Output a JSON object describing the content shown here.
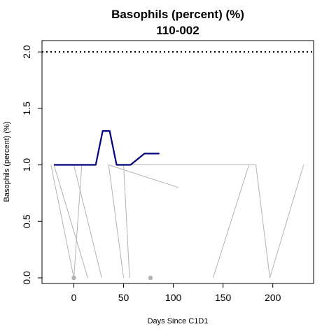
{
  "chart_data": {
    "type": "line",
    "title": "Basophils (percent) (%)",
    "subtitle": "110-002",
    "xlabel": "Days Since C1D1",
    "ylabel": "Basophils (percent) (%)",
    "xlim": [
      -32,
      241
    ],
    "ylim": [
      -0.05,
      2.1
    ],
    "x_ticks": [
      0,
      50,
      100,
      150,
      200
    ],
    "y_ticks": [
      0.0,
      0.5,
      1.0,
      1.5,
      2.0
    ],
    "x_tick_labels": [
      "0",
      "50",
      "100",
      "150",
      "200"
    ],
    "y_tick_labels": [
      "0.0",
      "0.5",
      "1.0",
      "1.5",
      "2.0"
    ],
    "reference_line": {
      "y": 2.0,
      "style": "dotted",
      "color": "#000000"
    },
    "colors": {
      "highlight": "#000080",
      "background": "#b3b3b3"
    },
    "background_lines": [
      [
        [
          -23,
          1.0
        ],
        [
          0,
          0.0
        ]
      ],
      [
        [
          -20,
          1.0
        ],
        [
          14,
          0.0
        ]
      ],
      [
        [
          0,
          1.0
        ],
        [
          28,
          0.0
        ]
      ],
      [
        [
          0,
          0.0
        ],
        [
          8,
          1.0
        ]
      ],
      [
        [
          35,
          1.0
        ],
        [
          50,
          0.0
        ]
      ],
      [
        [
          50,
          1.0
        ],
        [
          56,
          0.0
        ]
      ],
      [
        [
          35,
          1.0
        ],
        [
          105,
          0.8
        ]
      ],
      [
        [
          56,
          1.0
        ],
        [
          183,
          1.0
        ]
      ],
      [
        [
          140,
          0.0
        ],
        [
          176,
          1.0
        ]
      ],
      [
        [
          183,
          1.0
        ],
        [
          197,
          0.0
        ]
      ],
      [
        [
          197,
          0.0
        ],
        [
          231,
          1.0
        ]
      ]
    ],
    "highlight_series": {
      "x": [
        -20,
        22,
        29,
        36,
        43,
        57,
        71,
        86
      ],
      "y": [
        1.0,
        1.0,
        1.3,
        1.3,
        1.0,
        1.0,
        1.1,
        1.1
      ]
    },
    "points": [
      {
        "x": 0,
        "y": 0.0
      },
      {
        "x": 77,
        "y": 0.0
      }
    ]
  }
}
